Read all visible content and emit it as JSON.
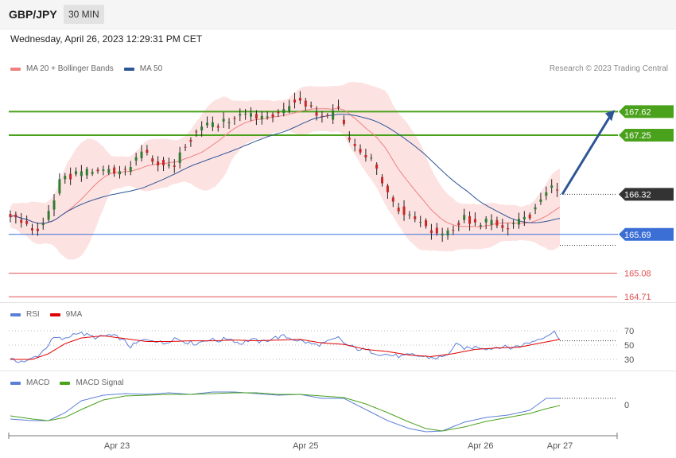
{
  "header": {
    "symbol": "GBP/JPY",
    "timeframe": "30 MIN"
  },
  "timestamp": "Wednesday, April 26, 2023 12:29:31 PM CET",
  "credit": "Research © 2023 Trading Central",
  "legends": {
    "main": [
      {
        "label": "MA 20 + Bollinger Bands",
        "color": "#f08080"
      },
      {
        "label": "MA 50",
        "color": "#2e5596"
      }
    ],
    "rsi": [
      {
        "label": "RSI",
        "color": "#5b7fd6"
      },
      {
        "label": "9MA",
        "color": "#e00000"
      }
    ],
    "macd": [
      {
        "label": "MACD",
        "color": "#5b7fd6"
      },
      {
        "label": "MACD Signal",
        "color": "#4aa11c"
      }
    ]
  },
  "colors": {
    "resistance": "#4aa11c",
    "pivot": "#3b6fd6",
    "support": "#e05050",
    "arrow": "#2e5596",
    "last": "#333333",
    "bull": "#2f7d32",
    "bear": "#c62828",
    "band": "#fde2e2"
  },
  "chart_data": {
    "type": "candlestick",
    "x_ticks": [
      "Apr 23",
      "Apr 25",
      "Apr 26",
      "Apr 27"
    ],
    "levels": [
      {
        "role": "resistance",
        "value": 167.62,
        "label": "167.62"
      },
      {
        "role": "resistance",
        "value": 167.25,
        "label": "167.25"
      },
      {
        "role": "last",
        "value": 166.32,
        "label": "166.32"
      },
      {
        "role": "pivot",
        "value": 165.69,
        "label": "165.69"
      },
      {
        "role": "support",
        "value": 165.08,
        "label": "165.08"
      },
      {
        "role": "support",
        "value": 164.71,
        "label": "164.71"
      }
    ],
    "price_path": [
      [
        0,
        166.0
      ],
      [
        4,
        165.9
      ],
      [
        8,
        165.75
      ],
      [
        12,
        165.85
      ],
      [
        15,
        166.1
      ],
      [
        18,
        166.5
      ],
      [
        21,
        166.6
      ],
      [
        26,
        166.65
      ],
      [
        31,
        166.7
      ],
      [
        36,
        166.7
      ],
      [
        40,
        166.65
      ],
      [
        44,
        166.75
      ],
      [
        48,
        167.0
      ],
      [
        52,
        166.85
      ],
      [
        56,
        166.8
      ],
      [
        60,
        166.75
      ],
      [
        64,
        167.1
      ],
      [
        68,
        167.3
      ],
      [
        72,
        167.45
      ],
      [
        76,
        167.4
      ],
      [
        80,
        167.5
      ],
      [
        84,
        167.55
      ],
      [
        88,
        167.6
      ],
      [
        92,
        167.5
      ],
      [
        96,
        167.55
      ],
      [
        100,
        167.65
      ],
      [
        104,
        167.8
      ],
      [
        108,
        167.75
      ],
      [
        112,
        167.55
      ],
      [
        116,
        167.5
      ],
      [
        120,
        167.7
      ],
      [
        123,
        167.2
      ],
      [
        126,
        167.05
      ],
      [
        130,
        166.95
      ],
      [
        134,
        166.75
      ],
      [
        138,
        166.35
      ],
      [
        142,
        166.1
      ],
      [
        146,
        166.0
      ],
      [
        150,
        165.9
      ],
      [
        154,
        165.75
      ],
      [
        158,
        165.7
      ],
      [
        162,
        165.8
      ],
      [
        166,
        165.95
      ],
      [
        170,
        165.85
      ],
      [
        174,
        165.9
      ],
      [
        178,
        165.85
      ],
      [
        182,
        165.8
      ],
      [
        186,
        165.9
      ],
      [
        190,
        166.0
      ],
      [
        194,
        166.2
      ],
      [
        198,
        166.45
      ],
      [
        201,
        166.32
      ]
    ],
    "projection": {
      "from": 166.32,
      "to": 167.62
    }
  },
  "rsi_data": {
    "levels": [
      70,
      50,
      30
    ],
    "rsi": [
      [
        0,
        29
      ],
      [
        6,
        27
      ],
      [
        11,
        38
      ],
      [
        16,
        60
      ],
      [
        20,
        58
      ],
      [
        24,
        68
      ],
      [
        28,
        64
      ],
      [
        32,
        60
      ],
      [
        36,
        64
      ],
      [
        40,
        60
      ],
      [
        44,
        48
      ],
      [
        48,
        56
      ],
      [
        52,
        58
      ],
      [
        56,
        52
      ],
      [
        60,
        60
      ],
      [
        64,
        55
      ],
      [
        68,
        52
      ],
      [
        72,
        58
      ],
      [
        76,
        56
      ],
      [
        80,
        60
      ],
      [
        84,
        52
      ],
      [
        88,
        58
      ],
      [
        92,
        54
      ],
      [
        96,
        60
      ],
      [
        100,
        62
      ],
      [
        104,
        58
      ],
      [
        108,
        54
      ],
      [
        112,
        50
      ],
      [
        116,
        54
      ],
      [
        120,
        60
      ],
      [
        123,
        50
      ],
      [
        127,
        45
      ],
      [
        131,
        42
      ],
      [
        135,
        38
      ],
      [
        139,
        36
      ],
      [
        143,
        34
      ],
      [
        147,
        36
      ],
      [
        151,
        34
      ],
      [
        155,
        32
      ],
      [
        159,
        34
      ],
      [
        163,
        50
      ],
      [
        167,
        45
      ],
      [
        171,
        48
      ],
      [
        175,
        45
      ],
      [
        179,
        48
      ],
      [
        183,
        46
      ],
      [
        187,
        50
      ],
      [
        191,
        55
      ],
      [
        195,
        62
      ],
      [
        199,
        68
      ],
      [
        201,
        60
      ]
    ],
    "ma9": [
      [
        0,
        30
      ],
      [
        8,
        30
      ],
      [
        14,
        38
      ],
      [
        20,
        52
      ],
      [
        26,
        60
      ],
      [
        34,
        63
      ],
      [
        42,
        59
      ],
      [
        50,
        55
      ],
      [
        58,
        55
      ],
      [
        66,
        56
      ],
      [
        74,
        56
      ],
      [
        82,
        57
      ],
      [
        90,
        56
      ],
      [
        98,
        57
      ],
      [
        106,
        58
      ],
      [
        114,
        53
      ],
      [
        122,
        51
      ],
      [
        130,
        44
      ],
      [
        138,
        41
      ],
      [
        146,
        36
      ],
      [
        154,
        34
      ],
      [
        162,
        38
      ],
      [
        170,
        44
      ],
      [
        178,
        46
      ],
      [
        186,
        47
      ],
      [
        194,
        53
      ],
      [
        201,
        58
      ]
    ]
  },
  "macd_data": {
    "zero_label": "0",
    "macd": [
      [
        0,
        -0.18
      ],
      [
        8,
        -0.2
      ],
      [
        14,
        -0.2
      ],
      [
        20,
        -0.1
      ],
      [
        26,
        0.05
      ],
      [
        34,
        0.12
      ],
      [
        42,
        0.14
      ],
      [
        50,
        0.13
      ],
      [
        58,
        0.15
      ],
      [
        66,
        0.13
      ],
      [
        74,
        0.16
      ],
      [
        82,
        0.16
      ],
      [
        90,
        0.14
      ],
      [
        98,
        0.12
      ],
      [
        106,
        0.13
      ],
      [
        114,
        0.08
      ],
      [
        122,
        0.08
      ],
      [
        130,
        -0.06
      ],
      [
        138,
        -0.2
      ],
      [
        146,
        -0.3
      ],
      [
        152,
        -0.34
      ],
      [
        158,
        -0.33
      ],
      [
        166,
        -0.22
      ],
      [
        174,
        -0.16
      ],
      [
        182,
        -0.13
      ],
      [
        190,
        -0.07
      ],
      [
        196,
        0.08
      ],
      [
        201,
        0.08
      ]
    ],
    "signal": [
      [
        0,
        -0.14
      ],
      [
        8,
        -0.18
      ],
      [
        14,
        -0.2
      ],
      [
        20,
        -0.16
      ],
      [
        26,
        -0.06
      ],
      [
        34,
        0.06
      ],
      [
        42,
        0.11
      ],
      [
        50,
        0.12
      ],
      [
        58,
        0.13
      ],
      [
        66,
        0.13
      ],
      [
        74,
        0.14
      ],
      [
        82,
        0.15
      ],
      [
        90,
        0.15
      ],
      [
        98,
        0.13
      ],
      [
        106,
        0.13
      ],
      [
        114,
        0.11
      ],
      [
        122,
        0.09
      ],
      [
        130,
        0.01
      ],
      [
        138,
        -0.1
      ],
      [
        146,
        -0.22
      ],
      [
        152,
        -0.3
      ],
      [
        158,
        -0.33
      ],
      [
        166,
        -0.28
      ],
      [
        174,
        -0.21
      ],
      [
        182,
        -0.16
      ],
      [
        190,
        -0.11
      ],
      [
        196,
        -0.05
      ],
      [
        201,
        -0.01
      ]
    ]
  }
}
